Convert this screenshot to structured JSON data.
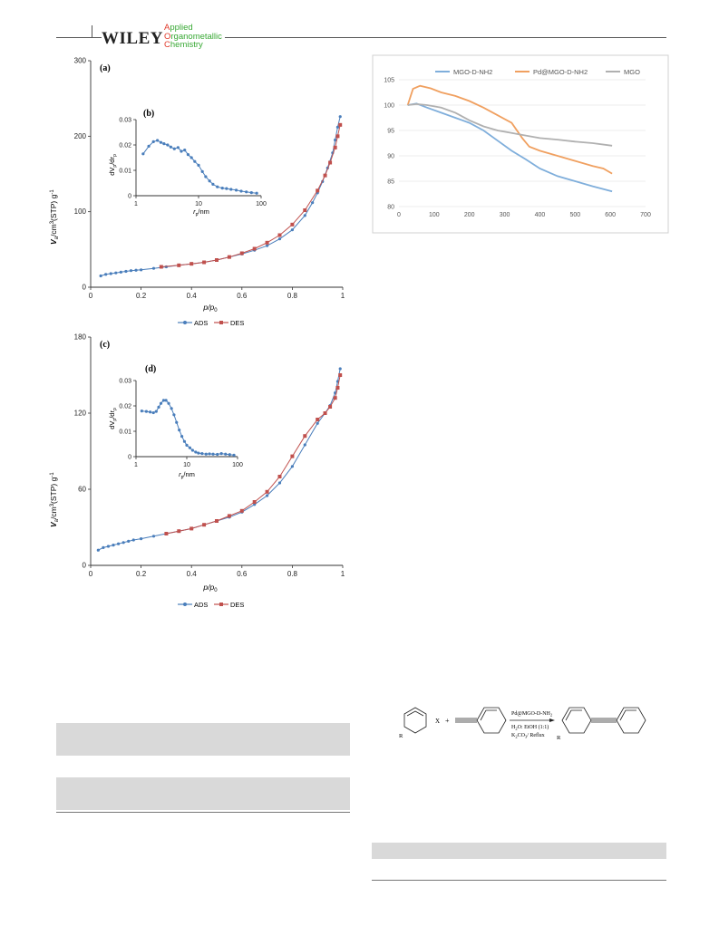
{
  "header": {
    "publisher": "WILEY",
    "journal_lines": [
      "Applied",
      "Organometallic",
      "Chemistry"
    ],
    "journal_caps": [
      "A",
      "O",
      "C"
    ],
    "journal_rest": [
      "pplied",
      "rganometallic",
      "hemistry"
    ]
  },
  "panel_labels": {
    "a": "(a)",
    "b": "(b)",
    "c": "(c)",
    "d": "(d)"
  },
  "axis_text": {
    "x_label_main": "p/p",
    "x_label_sub": "0",
    "y_label_main": "V",
    "y_label_sub": "a",
    "y_label_rest": "/cm",
    "y_label_sup": "3",
    "y_label_tail": "(STP) g",
    "y_label_tail_sup": "-1",
    "inset_x": "r",
    "inset_x_sub": "p",
    "inset_x_tail": "/nm",
    "inset_y": "dV",
    "inset_y_sub": "p",
    "inset_y_mid": "/dr",
    "inset_y_sub2": "p"
  },
  "legend_iso": {
    "ads": "ADS",
    "des": "DES"
  },
  "legend_tga": {
    "s1": "MGO-D-NH2",
    "s2": "Pd@MGO-D-NH2",
    "s3": "MGO"
  },
  "scheme": {
    "x_label": "X",
    "plus": "+",
    "r_label": "R",
    "cond1": "Pd@MGO-D-NH",
    "cond1_sub": "2",
    "cond2": "H",
    "cond2_sub": "2",
    "cond2_rest": "O: EtOH (1:1)",
    "cond3": "K",
    "cond3_sub": "2",
    "cond3_mid": "CO",
    "cond3_sub2": "3",
    "cond3_rest": "/ Reflux"
  },
  "chart_data": [
    {
      "id": "a",
      "type": "line",
      "xlabel": "p/p0",
      "ylabel": "Va/cm3(STP) g-1",
      "xlim": [
        0,
        1
      ],
      "ylim": [
        0,
        300
      ],
      "xticks": [
        "0",
        "0.2",
        "0.4",
        "0.6",
        "0.8",
        "1"
      ],
      "yticks": [
        "0",
        "100",
        "200",
        "300"
      ],
      "legend": "bottom",
      "series": [
        {
          "name": "ADS",
          "color": "#4a7ebb",
          "x": [
            0.04,
            0.06,
            0.08,
            0.1,
            0.12,
            0.14,
            0.16,
            0.18,
            0.2,
            0.25,
            0.3,
            0.35,
            0.4,
            0.45,
            0.5,
            0.55,
            0.6,
            0.65,
            0.7,
            0.75,
            0.8,
            0.85,
            0.88,
            0.9,
            0.92,
            0.94,
            0.96,
            0.97,
            0.98,
            0.99
          ],
          "y": [
            15,
            17,
            18,
            19,
            20,
            21,
            22,
            22.5,
            23,
            25,
            27,
            29,
            31,
            33,
            36,
            40,
            44,
            49,
            55,
            64,
            76,
            95,
            112,
            125,
            140,
            158,
            178,
            195,
            212,
            226
          ]
        },
        {
          "name": "DES",
          "color": "#c0504d",
          "x": [
            0.28,
            0.35,
            0.4,
            0.45,
            0.5,
            0.55,
            0.6,
            0.65,
            0.7,
            0.75,
            0.8,
            0.85,
            0.9,
            0.93,
            0.95,
            0.97,
            0.98,
            0.99
          ],
          "y": [
            27,
            29,
            31,
            33,
            36,
            40,
            45,
            51,
            59,
            69,
            83,
            102,
            128,
            148,
            165,
            185,
            200,
            215
          ]
        }
      ]
    },
    {
      "id": "b",
      "type": "line",
      "xscale": "log",
      "xlabel": "rp/nm",
      "ylabel": "dVp/drp",
      "xlim": [
        1,
        100
      ],
      "ylim": [
        0,
        0.03
      ],
      "xticks": [
        "1",
        "10",
        "100"
      ],
      "yticks": [
        "0",
        "0.01",
        "0.02",
        "0.03"
      ],
      "series": [
        {
          "name": "",
          "color": "#4a7ebb",
          "x": [
            1.3,
            1.6,
            1.9,
            2.2,
            2.5,
            2.8,
            3.2,
            3.6,
            4.1,
            4.7,
            5.3,
            6,
            6.8,
            7.7,
            8.7,
            10,
            11.5,
            13,
            15,
            17,
            20,
            24,
            28,
            33,
            40,
            48,
            58,
            70,
            85
          ],
          "y": [
            0.0165,
            0.0195,
            0.0213,
            0.0218,
            0.021,
            0.0205,
            0.02,
            0.0192,
            0.0185,
            0.019,
            0.0175,
            0.018,
            0.0162,
            0.015,
            0.0135,
            0.012,
            0.0095,
            0.0075,
            0.0058,
            0.0045,
            0.0035,
            0.003,
            0.0028,
            0.0025,
            0.0022,
            0.0018,
            0.0015,
            0.0012,
            0.001
          ]
        }
      ]
    },
    {
      "id": "c",
      "type": "line",
      "xlabel": "p/p0",
      "ylabel": "Va/cm3(STP) g-1",
      "xlim": [
        0,
        1
      ],
      "ylim": [
        0,
        180
      ],
      "xticks": [
        "0",
        "0.2",
        "0.4",
        "0.6",
        "0.8",
        "1"
      ],
      "yticks": [
        "0",
        "60",
        "120",
        "180"
      ],
      "legend": "bottom",
      "series": [
        {
          "name": "ADS",
          "color": "#4a7ebb",
          "x": [
            0.03,
            0.05,
            0.07,
            0.09,
            0.11,
            0.13,
            0.15,
            0.17,
            0.2,
            0.25,
            0.3,
            0.35,
            0.4,
            0.45,
            0.5,
            0.55,
            0.6,
            0.65,
            0.7,
            0.75,
            0.8,
            0.85,
            0.9,
            0.93,
            0.95,
            0.97,
            0.98,
            0.99
          ],
          "y": [
            12,
            14,
            15,
            16,
            17,
            18,
            19,
            20,
            21,
            23,
            25,
            27,
            29,
            32,
            35,
            38,
            42,
            48,
            55,
            65,
            78,
            95,
            112,
            120,
            126,
            136,
            145,
            155
          ]
        },
        {
          "name": "DES",
          "color": "#c0504d",
          "x": [
            0.3,
            0.35,
            0.4,
            0.45,
            0.5,
            0.55,
            0.6,
            0.65,
            0.7,
            0.75,
            0.8,
            0.85,
            0.9,
            0.93,
            0.95,
            0.97,
            0.98,
            0.99
          ],
          "y": [
            25,
            27,
            29,
            32,
            35,
            39,
            43,
            50,
            58,
            70,
            86,
            102,
            115,
            120,
            125,
            132,
            140,
            150
          ]
        }
      ]
    },
    {
      "id": "d",
      "type": "line",
      "xscale": "log",
      "xlabel": "rp/nm",
      "ylabel": "dVp/drp",
      "xlim": [
        1,
        100
      ],
      "ylim": [
        0,
        0.03
      ],
      "xticks": [
        "1",
        "10",
        "100"
      ],
      "yticks": [
        "0",
        "0.01",
        "0.02",
        "0.03"
      ],
      "series": [
        {
          "name": "",
          "color": "#4a7ebb",
          "x": [
            1.3,
            1.6,
            1.9,
            2.2,
            2.5,
            2.8,
            3.1,
            3.5,
            3.9,
            4.4,
            5,
            5.6,
            6.3,
            7.1,
            8,
            9,
            10,
            11.5,
            13,
            15,
            17,
            20,
            24,
            28,
            33,
            40,
            48,
            58,
            70,
            85
          ],
          "y": [
            0.018,
            0.0178,
            0.0176,
            0.0173,
            0.0178,
            0.0195,
            0.021,
            0.0222,
            0.0222,
            0.021,
            0.019,
            0.0165,
            0.0135,
            0.0105,
            0.008,
            0.006,
            0.0045,
            0.0035,
            0.0025,
            0.0018,
            0.0014,
            0.0012,
            0.001,
            0.0011,
            0.001,
            0.0009,
            0.0012,
            0.001,
            0.0008,
            0.0006
          ]
        }
      ]
    },
    {
      "id": "tga",
      "type": "line",
      "xlim": [
        0,
        700
      ],
      "ylim": [
        80,
        105
      ],
      "xticks": [
        "0",
        "100",
        "200",
        "300",
        "400",
        "500",
        "600",
        "700"
      ],
      "yticks": [
        "80",
        "85",
        "90",
        "95",
        "100",
        "105"
      ],
      "legend": "top",
      "grid": true,
      "series": [
        {
          "name": "MGO-D-NH2",
          "color": "#7faedb",
          "x": [
            25,
            50,
            80,
            120,
            160,
            200,
            240,
            280,
            320,
            360,
            400,
            450,
            500,
            550,
            605
          ],
          "y": [
            100,
            100.3,
            99.5,
            98.5,
            97.5,
            96.5,
            95,
            93,
            91,
            89.3,
            87.5,
            86,
            85,
            84,
            83
          ]
        },
        {
          "name": "Pd@MGO-D-NH2",
          "color": "#f0a060",
          "x": [
            25,
            40,
            60,
            90,
            120,
            160,
            200,
            240,
            280,
            320,
            350,
            370,
            400,
            450,
            500,
            550,
            580,
            605
          ],
          "y": [
            100,
            103.2,
            103.8,
            103.3,
            102.5,
            101.8,
            100.8,
            99.5,
            98,
            96.5,
            93.5,
            91.8,
            91,
            90,
            89,
            88,
            87.5,
            86.5
          ]
        },
        {
          "name": "MGO",
          "color": "#b0b0b0",
          "x": [
            25,
            50,
            80,
            120,
            160,
            200,
            240,
            280,
            320,
            360,
            400,
            450,
            500,
            550,
            605
          ],
          "y": [
            100,
            100.2,
            100,
            99.5,
            98.5,
            97,
            95.8,
            95,
            94.5,
            94,
            93.5,
            93.2,
            92.8,
            92.5,
            92
          ]
        }
      ]
    }
  ]
}
